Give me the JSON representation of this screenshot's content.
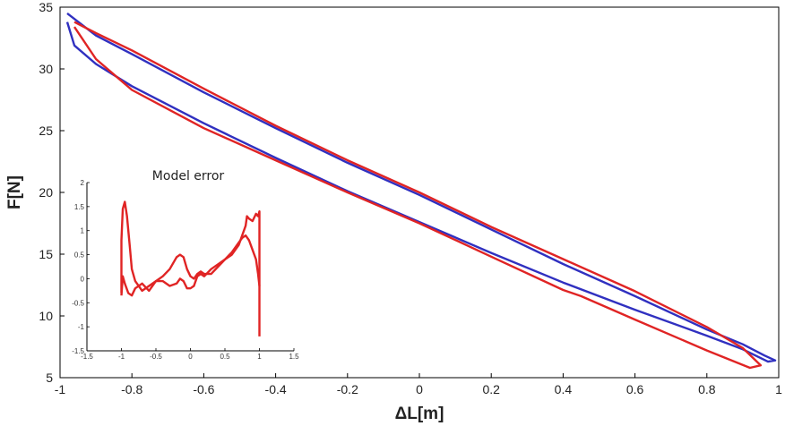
{
  "chart_data": [
    {
      "type": "line",
      "xlabel": "ΔL[m]",
      "ylabel": "F[N]",
      "xlim": [
        -1,
        1
      ],
      "ylim": [
        5,
        35
      ],
      "xticks": [
        "-1",
        "-0.8",
        "-0.6",
        "-0.4",
        "-0.2",
        "0",
        "0.2",
        "0.4",
        "0.6",
        "0.8",
        "1"
      ],
      "yticks": [
        "5",
        "10",
        "15",
        "20",
        "25",
        "30",
        "35"
      ],
      "series": [
        {
          "color": "#3030c0",
          "x": [
            -0.98,
            -0.9,
            -0.8,
            -0.6,
            -0.4,
            -0.2,
            0,
            0.2,
            0.4,
            0.6,
            0.8,
            0.9,
            0.96,
            0.99,
            0.97,
            0.9,
            0.8,
            0.6,
            0.4,
            0.2,
            0,
            -0.2,
            -0.4,
            -0.6,
            -0.8,
            -0.9,
            -0.96,
            -0.98
          ],
          "y": [
            34.5,
            32.7,
            31.2,
            28.1,
            25.2,
            22.4,
            19.8,
            17.0,
            14.2,
            11.6,
            8.9,
            7.7,
            6.8,
            6.4,
            6.3,
            7.3,
            8.4,
            10.5,
            12.7,
            15.1,
            17.6,
            20.1,
            22.8,
            25.6,
            28.6,
            30.4,
            31.9,
            33.8
          ]
        },
        {
          "color": "#e02424",
          "x": [
            -0.96,
            -0.9,
            -0.8,
            -0.6,
            -0.4,
            -0.2,
            0,
            0.2,
            0.4,
            0.6,
            0.8,
            0.9,
            0.95,
            0.92,
            0.8,
            0.6,
            0.45,
            0.4,
            0.2,
            0,
            -0.2,
            -0.4,
            -0.6,
            -0.8,
            -0.9,
            -0.96
          ],
          "y": [
            33.8,
            32.9,
            31.5,
            28.4,
            25.4,
            22.6,
            20.0,
            17.2,
            14.6,
            12.0,
            9.1,
            7.4,
            6.0,
            5.8,
            7.2,
            9.7,
            11.6,
            12.1,
            14.8,
            17.5,
            20.0,
            22.6,
            25.2,
            28.3,
            30.8,
            33.4
          ]
        }
      ]
    },
    {
      "type": "line",
      "title": "Model error",
      "xlim": [
        -1.5,
        1.5
      ],
      "ylim": [
        -1.5,
        2
      ],
      "xticks": [
        "-1.5",
        "-1",
        "-0.5",
        "0",
        "0.5",
        "1",
        "1.5"
      ],
      "yticks": [
        "-1.5",
        "-1",
        "-0.5",
        "0",
        "0.5",
        "1",
        "1.5",
        "2"
      ],
      "series": [
        {
          "color": "#e02424",
          "x": [
            -1.0,
            -1.0,
            -0.98,
            -0.95,
            -0.92,
            -0.88,
            -0.85,
            -0.8,
            -0.7,
            -0.6,
            -0.5,
            -0.4,
            -0.3,
            -0.2,
            -0.15,
            -0.1,
            -0.05,
            0.0,
            0.05,
            0.1,
            0.15,
            0.2,
            0.3,
            0.4,
            0.5,
            0.6,
            0.7,
            0.8,
            0.82,
            0.85,
            0.9,
            0.95,
            0.98,
            1.0,
            1.0
          ],
          "y": [
            -0.3,
            0.8,
            1.45,
            1.6,
            1.3,
            0.7,
            0.2,
            -0.05,
            -0.25,
            -0.15,
            -0.05,
            0.05,
            0.2,
            0.45,
            0.5,
            0.45,
            0.2,
            0.05,
            0.0,
            0.1,
            0.15,
            0.1,
            0.1,
            0.25,
            0.4,
            0.5,
            0.7,
            1.1,
            1.3,
            1.25,
            1.2,
            1.35,
            1.3,
            1.4,
            -1.2
          ]
        },
        {
          "color": "#e02424",
          "x": [
            1.0,
            0.98,
            0.95,
            0.9,
            0.85,
            0.8,
            0.75,
            0.7,
            0.6,
            0.5,
            0.4,
            0.3,
            0.2,
            0.15,
            0.1,
            0.05,
            0.0,
            -0.05,
            -0.1,
            -0.15,
            -0.2,
            -0.3,
            -0.4,
            -0.5,
            -0.6,
            -0.7,
            -0.8,
            -0.85,
            -0.9,
            -0.95,
            -0.98,
            -1.0
          ],
          "y": [
            -0.15,
            0.1,
            0.4,
            0.6,
            0.8,
            0.9,
            0.85,
            0.75,
            0.55,
            0.4,
            0.3,
            0.2,
            0.05,
            0.1,
            0.05,
            -0.15,
            -0.2,
            -0.2,
            -0.05,
            0.0,
            -0.1,
            -0.15,
            -0.05,
            -0.05,
            -0.25,
            -0.1,
            -0.2,
            -0.35,
            -0.3,
            -0.1,
            0.05,
            -0.35
          ]
        }
      ]
    }
  ]
}
